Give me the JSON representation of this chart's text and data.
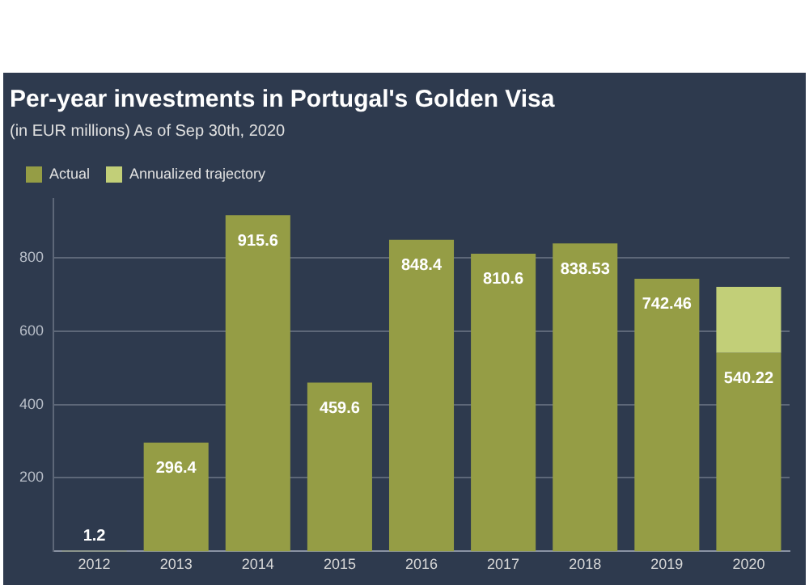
{
  "chart_data": {
    "type": "bar",
    "title": "Per-year investments in Portugal's Golden Visa",
    "subtitle": "(in EUR millions) As of Sep 30th, 2020",
    "categories": [
      "2012",
      "2013",
      "2014",
      "2015",
      "2016",
      "2017",
      "2018",
      "2019",
      "2020"
    ],
    "series": [
      {
        "name": "Actual",
        "color": "#959d45",
        "values": [
          1.2,
          296.4,
          915.6,
          459.6,
          848.4,
          810.6,
          838.53,
          742.46,
          540.22
        ],
        "value_labels": [
          "1.2",
          "296.4",
          "915.6",
          "459.6",
          "848.4",
          "810.6",
          "838.53",
          "742.46",
          "540.22"
        ]
      },
      {
        "name": "Annualized trajectory",
        "color": "#c2cf78",
        "values": [
          null,
          null,
          null,
          null,
          null,
          null,
          null,
          null,
          180
        ],
        "value_labels": [
          null,
          null,
          null,
          null,
          null,
          null,
          null,
          null,
          null
        ]
      }
    ],
    "stacked": true,
    "ylim": [
      0,
      960
    ],
    "yticks": [
      200,
      400,
      600,
      800
    ],
    "grid": "y",
    "legend": "top left"
  }
}
